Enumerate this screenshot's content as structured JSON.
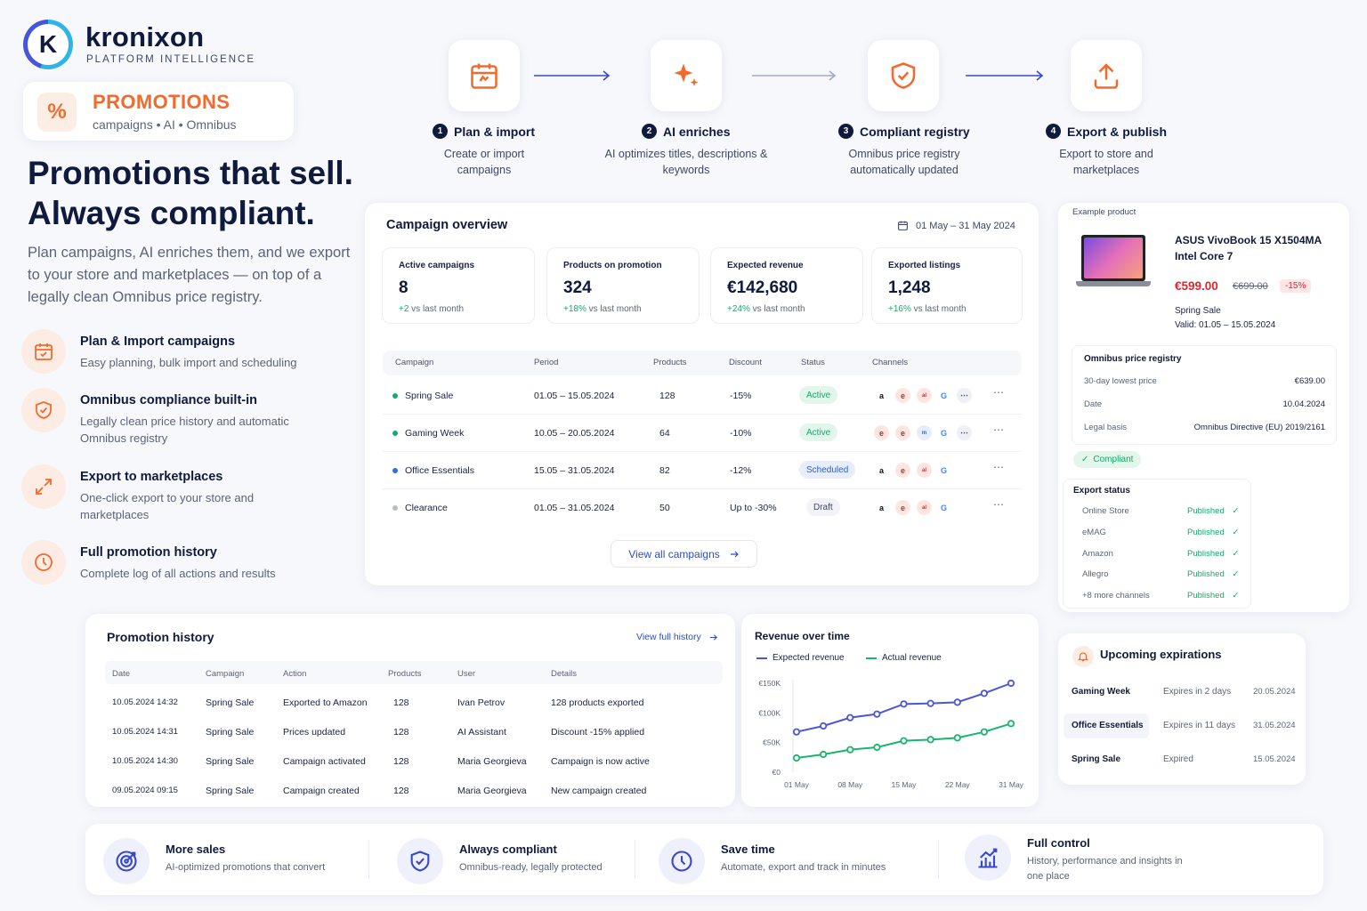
{
  "brand": {
    "name": "kronixon",
    "tagline": "PLATFORM INTELLIGENCE",
    "logo_letter": "K"
  },
  "promo": {
    "title": "PROMOTIONS",
    "subtitle": "campaigns • AI • Omnibus",
    "icon": "percent-icon"
  },
  "hero": {
    "line1": "Promotions that sell.",
    "line2": "Always compliant.",
    "paragraph": "Plan campaigns, AI enriches them, and we export to your store and marketplaces — on top of a legally clean Omnibus price registry."
  },
  "features": [
    {
      "title": "Plan & Import campaigns",
      "desc": "Easy planning, bulk import and scheduling",
      "icon": "calendar-icon"
    },
    {
      "title": "Omnibus compliance built-in",
      "desc": "Legally clean price history and automatic Omnibus registry",
      "icon": "shield-check-icon"
    },
    {
      "title": "Export to marketplaces",
      "desc": "One-click export to your store and marketplaces",
      "icon": "expand-arrows-icon"
    },
    {
      "title": "Full promotion history",
      "desc": "Complete log of all actions and results",
      "icon": "clock-icon"
    }
  ],
  "steps": [
    {
      "num": "1",
      "title": "Plan & import",
      "desc": "Create or import campaigns",
      "icon": "calendar-icon"
    },
    {
      "num": "2",
      "title": "AI enriches",
      "desc": "AI optimizes titles, descriptions & keywords",
      "icon": "sparkle-icon"
    },
    {
      "num": "3",
      "title": "Compliant registry",
      "desc": "Omnibus price registry automatically updated",
      "icon": "shield-check-icon"
    },
    {
      "num": "4",
      "title": "Export & publish",
      "desc": "Export to store and marketplaces",
      "icon": "upload-icon"
    }
  ],
  "overview": {
    "title": "Campaign overview",
    "date_range": "01 May – 31 May 2024",
    "kpis": [
      {
        "label": "Active campaigns",
        "value": "8",
        "change": "+2",
        "change_suffix": " vs last month"
      },
      {
        "label": "Products on promotion",
        "value": "324",
        "change": "+18%",
        "change_suffix": " vs last month"
      },
      {
        "label": "Expected revenue",
        "value": "€142,680",
        "change": "+24%",
        "change_suffix": " vs last month"
      },
      {
        "label": "Exported listings",
        "value": "1,248",
        "change": "+16%",
        "change_suffix": " vs last month"
      }
    ],
    "columns": [
      "Campaign",
      "Period",
      "Products",
      "Discount",
      "Status",
      "Channels"
    ],
    "rows": [
      {
        "name": "Spring Sale",
        "period": "01.05 – 15.05.2024",
        "products": "128",
        "discount": "-15%",
        "status": "Active",
        "dot": "#17a86b",
        "status_bg": "#e3f6ec",
        "status_fg": "#17a86b"
      },
      {
        "name": "Gaming Week",
        "period": "10.05 – 20.05.2024",
        "products": "64",
        "discount": "-10%",
        "status": "Active",
        "dot": "#17a86b",
        "status_bg": "#e3f6ec",
        "status_fg": "#17a86b"
      },
      {
        "name": "Office Essentials",
        "period": "15.05 – 31.05.2024",
        "products": "82",
        "discount": "-12%",
        "status": "Scheduled",
        "dot": "#2f6fe0",
        "status_bg": "#e6edfb",
        "status_fg": "#2f5fc8"
      },
      {
        "name": "Clearance",
        "period": "01.05 – 31.05.2024",
        "products": "50",
        "discount": "Up to -30%",
        "status": "Draft",
        "dot": "#b7bccb",
        "status_bg": "#f2f3f7",
        "status_fg": "#3f4762"
      }
    ],
    "view_all": "View all campaigns"
  },
  "product": {
    "label": "Example product",
    "name": "ASUS VivoBook 15 X1504MA Intel Core 7",
    "price": "€599.00",
    "old_price": "€699.00",
    "discount": "-15%",
    "campaign": "Spring Sale",
    "valid": "Valid: 01.05 – 15.05.2024",
    "registry": {
      "title": "Omnibus price registry",
      "items": [
        {
          "k": "30-day lowest price",
          "v": "€639.00"
        },
        {
          "k": "Date",
          "v": "10.04.2024"
        },
        {
          "k": "Legal basis",
          "v": "Omnibus Directive (EU) 2019/2161"
        }
      ],
      "badge": "Compliant"
    },
    "export": {
      "title": "Export status",
      "items": [
        {
          "k": "Online Store",
          "v": "Published"
        },
        {
          "k": "eMAG",
          "v": "Published"
        },
        {
          "k": "Amazon",
          "v": "Published"
        },
        {
          "k": "Allegro",
          "v": "Published"
        },
        {
          "k": "+8 more channels",
          "v": "Published"
        }
      ]
    }
  },
  "history": {
    "title": "Promotion history",
    "view_full": "View full history",
    "columns": [
      "Date",
      "Campaign",
      "Action",
      "Products",
      "User",
      "Details"
    ],
    "rows": [
      [
        "10.05.2024 14:32",
        "Spring Sale",
        "Exported to Amazon",
        "128",
        "Ivan Petrov",
        "128 products exported"
      ],
      [
        "10.05.2024 14:31",
        "Spring Sale",
        "Prices updated",
        "128",
        "AI Assistant",
        "Discount -15% applied"
      ],
      [
        "10.05.2024 14:30",
        "Spring Sale",
        "Campaign activated",
        "128",
        "Maria Georgieva",
        "Campaign is now active"
      ],
      [
        "09.05.2024 09:15",
        "Spring Sale",
        "Campaign created",
        "128",
        "Maria Georgieva",
        "New campaign created"
      ]
    ]
  },
  "chart_data": {
    "type": "line",
    "title": "Revenue over time",
    "x": [
      "01 May",
      "05 May",
      "08 May",
      "12 May",
      "15 May",
      "19 May",
      "22 May",
      "26 May",
      "31 May"
    ],
    "x_ticks": [
      "01 May",
      "08 May",
      "15 May",
      "22 May",
      "31 May"
    ],
    "y_ticks": [
      "€0",
      "€50K",
      "€100K",
      "€150K"
    ],
    "ylim": [
      0,
      150000
    ],
    "series": [
      {
        "name": "Expected revenue",
        "color": "#4a55d8",
        "values": [
          68000,
          78000,
          92000,
          98000,
          115000,
          116000,
          118000,
          133000,
          150000
        ]
      },
      {
        "name": "Actual revenue",
        "color": "#19b56e",
        "values": [
          24000,
          30000,
          38000,
          42000,
          53000,
          55000,
          58000,
          68000,
          82000
        ]
      }
    ]
  },
  "expirations": {
    "title": "Upcoming expirations",
    "rows": [
      {
        "name": "Gaming Week",
        "status": "Expires in 2 days",
        "date": "20.05.2024"
      },
      {
        "name": "Office Essentials",
        "status": "Expires in 11 days",
        "date": "31.05.2024"
      },
      {
        "name": "Spring Sale",
        "status": "Expired",
        "date": "15.05.2024"
      }
    ]
  },
  "benefits": [
    {
      "title": "More sales",
      "desc": "AI-optimized promotions that convert",
      "icon": "target-icon"
    },
    {
      "title": "Always compliant",
      "desc": "Omnibus-ready, legally protected",
      "icon": "shield-check-icon"
    },
    {
      "title": "Save time",
      "desc": "Automate, export and track in minutes",
      "icon": "clock-icon"
    },
    {
      "title": "Full control",
      "desc": "History, performance and insights in one place",
      "icon": "bar-chart-icon"
    }
  ]
}
